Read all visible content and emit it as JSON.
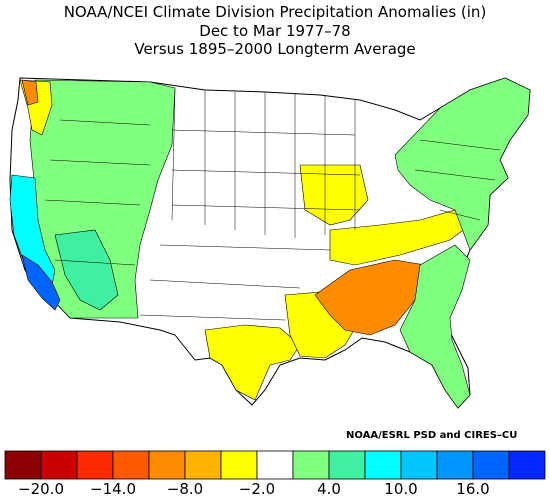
{
  "title": {
    "line1": "NOAA/NCEI Climate Division Precipitation Anomalies (in)",
    "line2": "Dec to Mar 1977–78",
    "line3": "Versus 1895–2000 Longterm Average"
  },
  "credit": "NOAA/ESRL PSD and CIRES–CU",
  "legend": {
    "colors": [
      "#8b0000",
      "#cc0000",
      "#ff2a00",
      "#ff5a00",
      "#ff8c00",
      "#ffb400",
      "#ffff00",
      "#ffffff",
      "#80ff80",
      "#40f0a0",
      "#00ffff",
      "#00c8ff",
      "#0096ff",
      "#0064ff",
      "#0028ff"
    ],
    "tick_labels": [
      "−20.0",
      "−14.0",
      "−8.0",
      "−2.0",
      "4.0",
      "10.0",
      "16.0"
    ]
  },
  "map": {
    "outline_color": "#000000",
    "regions": [
      {
        "name": "pacific-northwest-dry",
        "color": "#ffff00"
      },
      {
        "name": "puget-sound-deficit",
        "color": "#ff8c00"
      },
      {
        "name": "california-coast-wet",
        "color": "#00ffff"
      },
      {
        "name": "california-south-wettest",
        "color": "#0064ff"
      },
      {
        "name": "west-wet",
        "color": "#80ff80"
      },
      {
        "name": "great-basin-moderate",
        "color": "#40f0a0"
      },
      {
        "name": "ohio-valley-dry",
        "color": "#ffff00"
      },
      {
        "name": "deep-south-dry",
        "color": "#ff8c00"
      },
      {
        "name": "gulf-coast-dry",
        "color": "#ffff00"
      },
      {
        "name": "texas-dry",
        "color": "#ffff00"
      },
      {
        "name": "northeast-wet",
        "color": "#80ff80"
      },
      {
        "name": "southeast-wet",
        "color": "#80ff80"
      }
    ]
  }
}
